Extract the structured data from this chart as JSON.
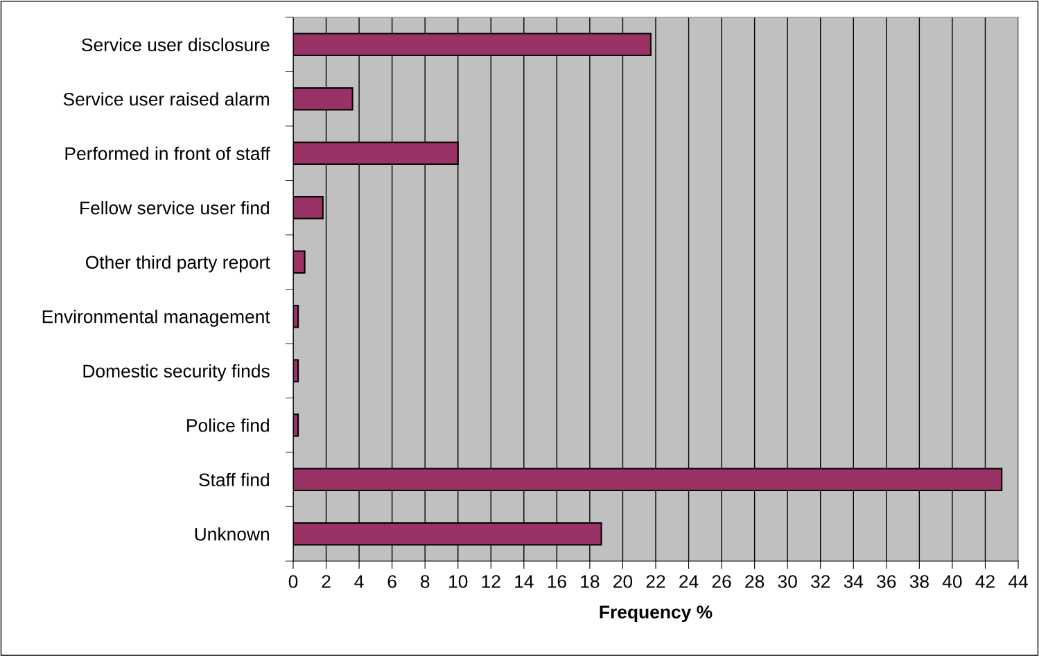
{
  "chart_data": {
    "type": "bar",
    "orientation": "horizontal",
    "xlabel": "Frequency %",
    "categories": [
      "Service user disclosure",
      "Service user raised alarm",
      "Performed in front of staff",
      "Fellow service user find",
      "Other third party report",
      "Environmental management",
      "Domestic security finds",
      "Police find",
      "Staff find",
      "Unknown"
    ],
    "values": [
      21.7,
      3.6,
      10.0,
      1.8,
      0.7,
      0.3,
      0.3,
      0.3,
      43.0,
      18.7
    ],
    "color": "#993366",
    "xlim": [
      0,
      44
    ],
    "xticks": [
      0,
      2,
      4,
      6,
      8,
      10,
      12,
      14,
      16,
      18,
      20,
      22,
      24,
      26,
      28,
      30,
      32,
      34,
      36,
      38,
      40,
      42,
      44
    ],
    "grid": "x"
  }
}
